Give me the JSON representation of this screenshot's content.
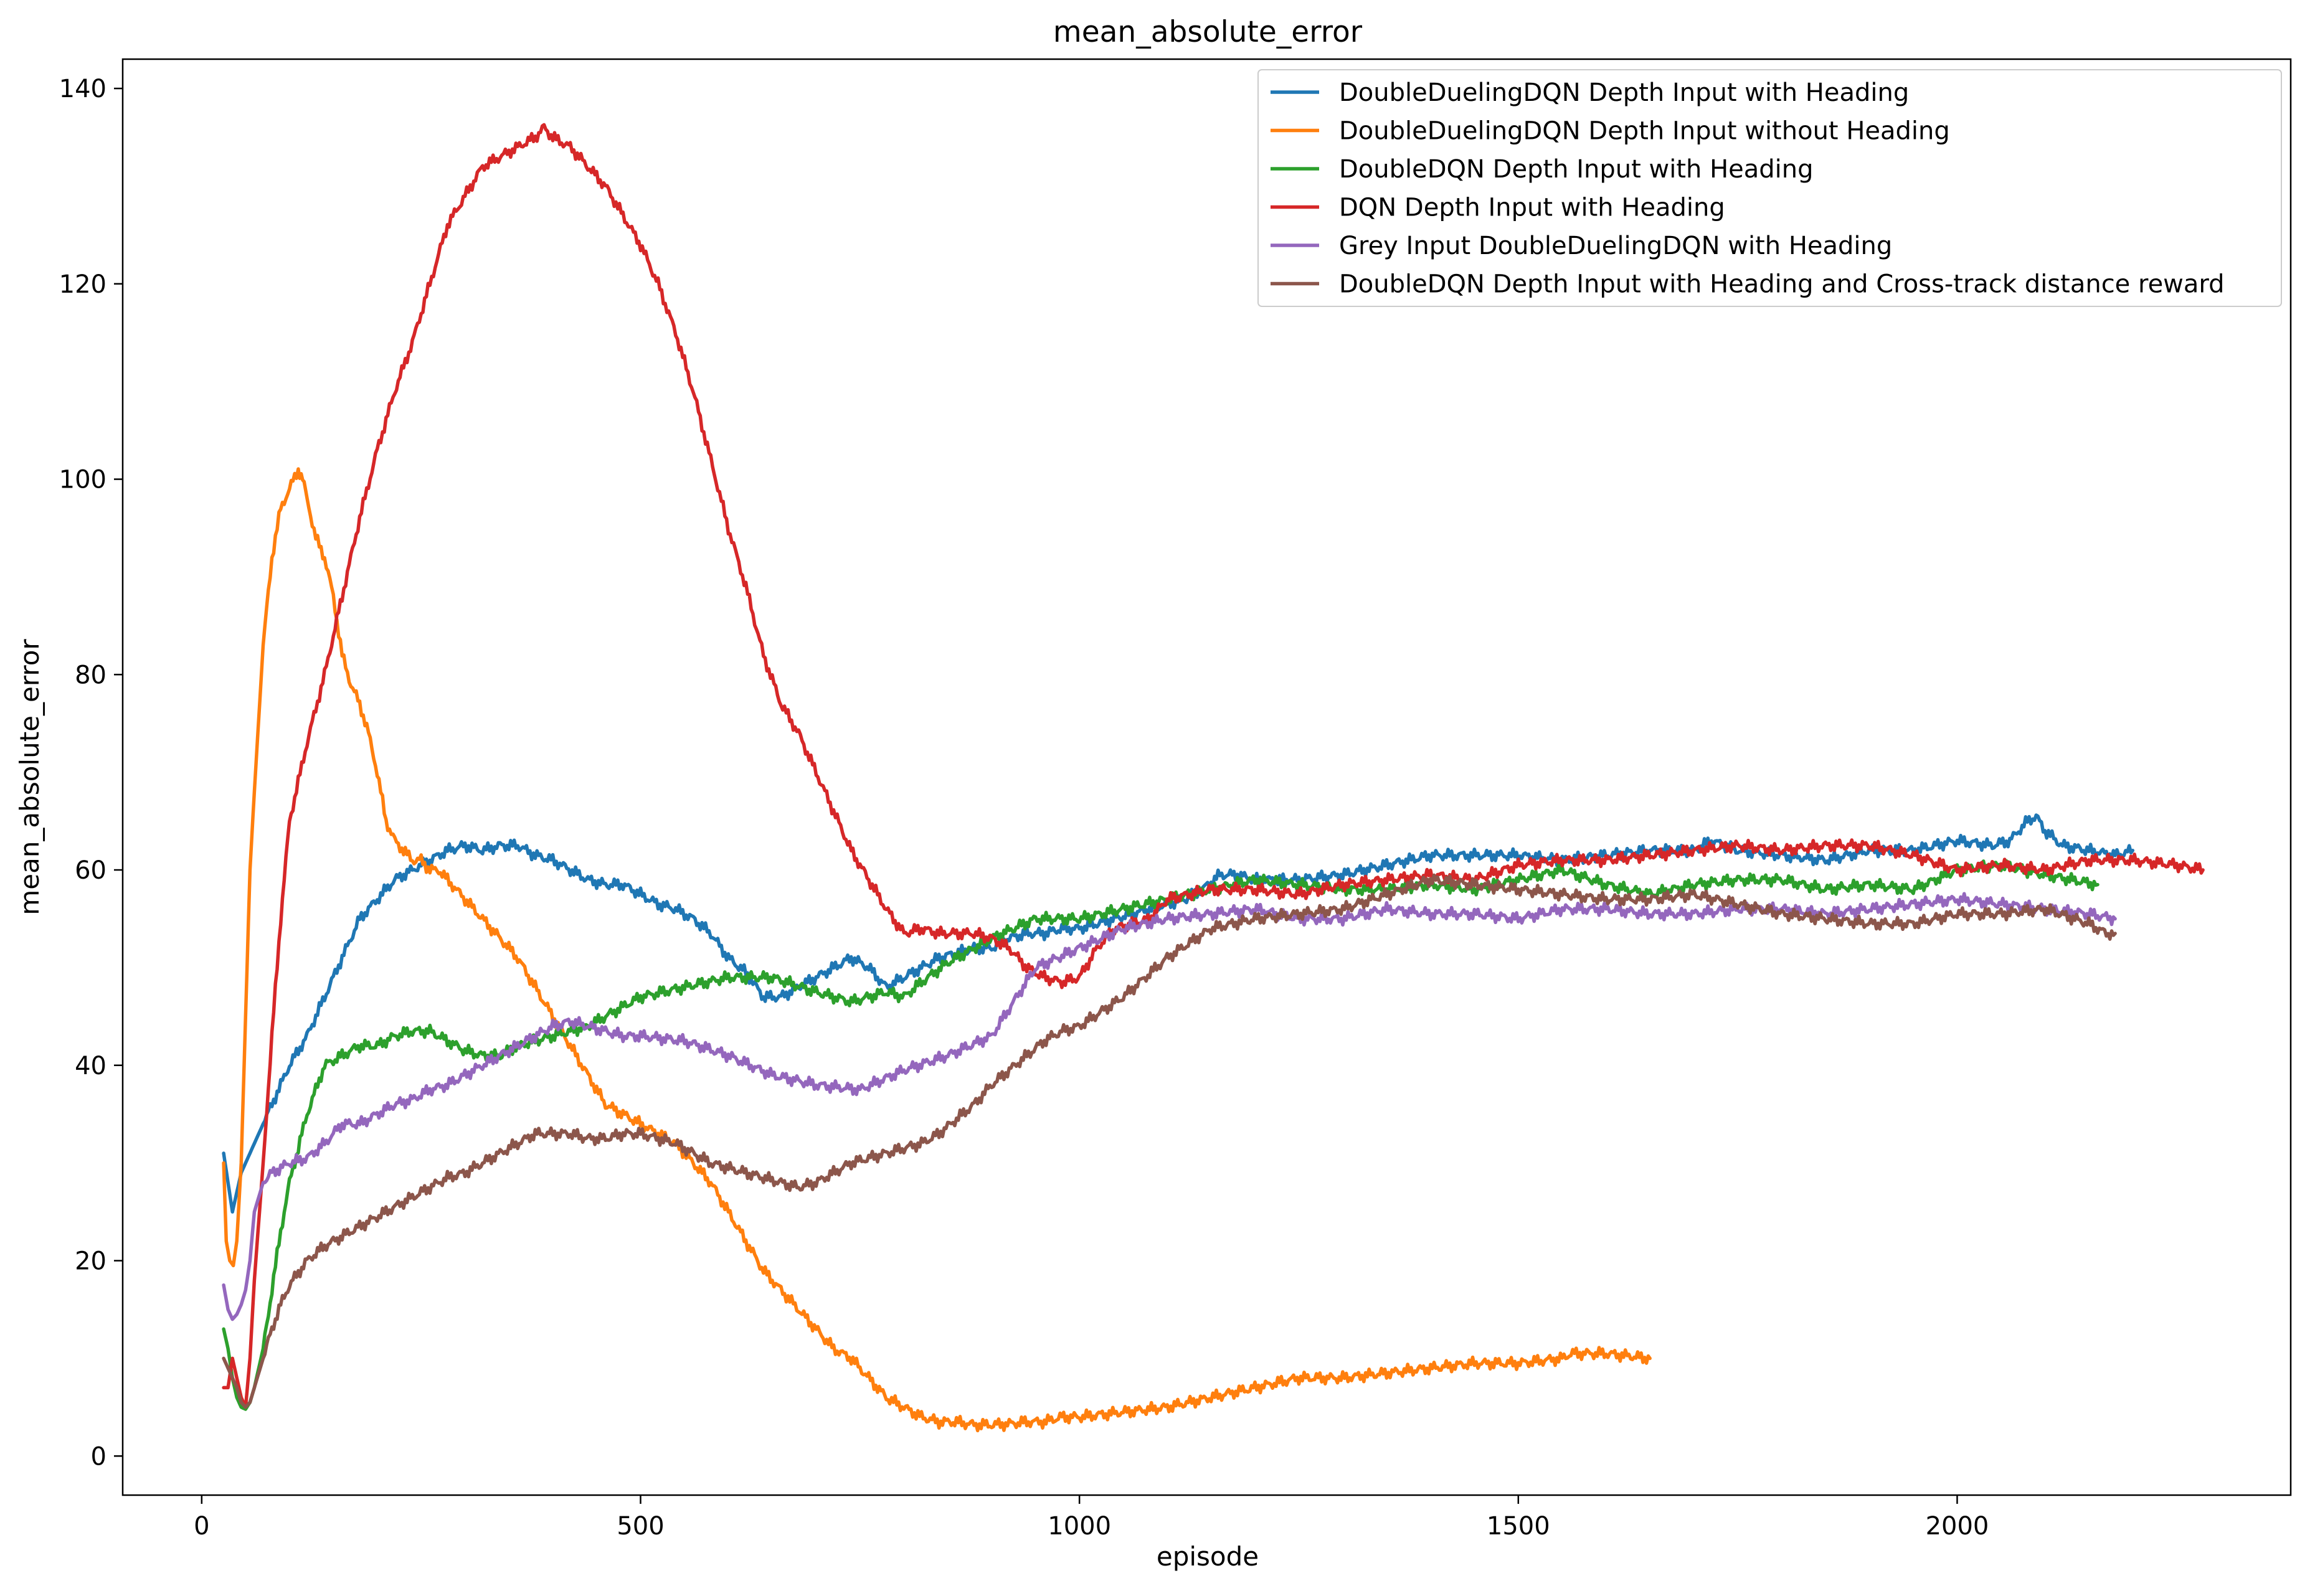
{
  "chart_data": {
    "type": "line",
    "title": "mean_absolute_error",
    "xlabel": "episode",
    "ylabel": "mean_absolute_error",
    "xlim": [
      -90,
      2380
    ],
    "ylim": [
      -4,
      143
    ],
    "xticks": [
      0,
      500,
      1000,
      1500,
      2000
    ],
    "yticks": [
      0,
      20,
      40,
      60,
      80,
      100,
      120,
      140
    ],
    "grid": false,
    "legend_position": "top-right",
    "series": [
      {
        "name": "DoubleDuelingDQN Depth Input with Heading",
        "color": "#1f77b4",
        "x": [
          25,
          30,
          35,
          40,
          45,
          50,
          55,
          60,
          70,
          80,
          90,
          100,
          120,
          140,
          160,
          180,
          200,
          220,
          240,
          260,
          280,
          300,
          320,
          340,
          360,
          380,
          400,
          420,
          440,
          460,
          480,
          500,
          520,
          540,
          560,
          580,
          600,
          620,
          640,
          660,
          680,
          700,
          720,
          740,
          760,
          780,
          800,
          820,
          840,
          860,
          880,
          900,
          920,
          940,
          960,
          980,
          1000,
          1020,
          1040,
          1060,
          1080,
          1100,
          1120,
          1140,
          1160,
          1180,
          1200,
          1250,
          1300,
          1350,
          1400,
          1450,
          1500,
          1550,
          1600,
          1650,
          1700,
          1720,
          1750,
          1800,
          1850,
          1900,
          1950,
          2000,
          2040,
          2060,
          2080,
          2090,
          2100,
          2120,
          2150,
          2180,
          2200
        ],
        "y": [
          31,
          28,
          25,
          27,
          29,
          30,
          31,
          32,
          34,
          36,
          38,
          40,
          43,
          47,
          51,
          55,
          57,
          59,
          60,
          61,
          62,
          62.5,
          62,
          62.5,
          62.5,
          61.5,
          61,
          60,
          59,
          58.5,
          58.5,
          57.5,
          56.5,
          56,
          55,
          53.5,
          51,
          49.5,
          47,
          47,
          48,
          49,
          50,
          51,
          50,
          48,
          49,
          50,
          51,
          51.5,
          52,
          52,
          53,
          53.5,
          53.5,
          54,
          54,
          54.5,
          55,
          55.5,
          56,
          56.5,
          57,
          58,
          59.5,
          59.5,
          59,
          59,
          59.5,
          60.5,
          61.5,
          61.5,
          61.5,
          61,
          61.5,
          62,
          62,
          63,
          62,
          61.5,
          61,
          62,
          62,
          63,
          62.5,
          63,
          65,
          65.5,
          64,
          62.5,
          62,
          61.5,
          62
        ]
      },
      {
        "name": "DoubleDuelingDQN Depth Input without Heading",
        "color": "#ff7f0e",
        "x": [
          25,
          28,
          32,
          36,
          40,
          45,
          50,
          55,
          60,
          70,
          80,
          90,
          100,
          110,
          115,
          120,
          130,
          140,
          150,
          160,
          170,
          180,
          190,
          200,
          210,
          220,
          230,
          240,
          250,
          260,
          270,
          280,
          290,
          300,
          320,
          340,
          360,
          380,
          400,
          420,
          440,
          460,
          480,
          500,
          520,
          540,
          560,
          580,
          600,
          620,
          640,
          660,
          680,
          700,
          720,
          740,
          760,
          780,
          800,
          820,
          840,
          860,
          880,
          900,
          920,
          940,
          960,
          980,
          1000,
          1050,
          1100,
          1150,
          1200,
          1250,
          1300,
          1350,
          1400,
          1450,
          1500,
          1550,
          1560,
          1570,
          1600,
          1650
        ],
        "y": [
          30,
          22,
          20,
          19.5,
          22,
          30,
          45,
          60,
          68,
          83,
          92,
          97,
          99,
          101,
          100,
          98,
          94,
          92,
          88,
          82,
          79,
          77,
          74,
          70,
          65,
          63,
          62,
          61,
          61,
          60,
          60,
          59,
          58,
          57,
          55,
          53,
          51,
          48,
          45,
          42,
          39,
          36,
          35,
          34,
          33,
          32,
          30,
          28,
          25,
          22,
          19,
          17,
          15,
          13,
          11,
          10,
          8,
          6,
          5,
          4,
          3.5,
          3.5,
          3.2,
          3.2,
          3.3,
          3.5,
          3.5,
          4,
          4,
          4.5,
          5,
          6,
          7,
          8,
          8,
          8.5,
          9,
          9.5,
          9.5,
          10,
          10.5,
          10.5,
          10.5,
          10
        ]
      },
      {
        "name": "DoubleDQN Depth Input with Heading",
        "color": "#2ca02c",
        "x": [
          25,
          30,
          35,
          40,
          45,
          50,
          55,
          60,
          70,
          80,
          90,
          100,
          120,
          140,
          160,
          180,
          200,
          220,
          240,
          260,
          280,
          300,
          320,
          340,
          360,
          380,
          400,
          420,
          440,
          460,
          480,
          500,
          550,
          600,
          650,
          700,
          740,
          760,
          780,
          800,
          820,
          850,
          900,
          950,
          1000,
          1050,
          1100,
          1150,
          1200,
          1250,
          1300,
          1350,
          1400,
          1450,
          1500,
          1550,
          1600,
          1650,
          1700,
          1750,
          1800,
          1850,
          1900,
          1950,
          2000,
          2050,
          2100,
          2130,
          2160
        ],
        "y": [
          13,
          11,
          8,
          6,
          5,
          4.8,
          5.5,
          7,
          11,
          17,
          23,
          28,
          35,
          40,
          41,
          42,
          42,
          43,
          43.5,
          43.5,
          42.5,
          41.5,
          41,
          41,
          42,
          42.5,
          43,
          43.5,
          44,
          45,
          46,
          47,
          48,
          49,
          49,
          47.5,
          46.5,
          47,
          47.5,
          47,
          48.5,
          50.5,
          53,
          55,
          55,
          56,
          57,
          58,
          59,
          58.5,
          58,
          58,
          58.5,
          58,
          59,
          60,
          58.5,
          57.5,
          58.5,
          59,
          59,
          58,
          58.5,
          58,
          60,
          60.5,
          59.5,
          59,
          58.5
        ]
      },
      {
        "name": "DQN Depth Input with Heading",
        "color": "#d62728",
        "x": [
          25,
          30,
          35,
          40,
          45,
          50,
          55,
          60,
          70,
          80,
          90,
          100,
          120,
          140,
          160,
          180,
          200,
          220,
          240,
          260,
          280,
          300,
          320,
          340,
          360,
          380,
          390,
          400,
          420,
          440,
          460,
          480,
          500,
          520,
          540,
          560,
          580,
          600,
          620,
          640,
          660,
          680,
          700,
          720,
          740,
          760,
          780,
          800,
          820,
          840,
          860,
          880,
          900,
          920,
          940,
          960,
          980,
          1000,
          1020,
          1040,
          1060,
          1080,
          1100,
          1150,
          1200,
          1250,
          1300,
          1350,
          1400,
          1450,
          1500,
          1550,
          1600,
          1650,
          1700,
          1750,
          1800,
          1850,
          1900,
          1950,
          2000,
          2050,
          2100,
          2150,
          2200,
          2250,
          2280
        ],
        "y": [
          7,
          7,
          10,
          8,
          6,
          5,
          10,
          18,
          30,
          43,
          55,
          65,
          73,
          80,
          88,
          96,
          103,
          109,
          114,
          120,
          126,
          129,
          132,
          133,
          134,
          135,
          136,
          135,
          134,
          132,
          130,
          127,
          124,
          120,
          115,
          109,
          102,
          95,
          89,
          82,
          77,
          74,
          70,
          66,
          62,
          59,
          56,
          53.5,
          54,
          53.5,
          53.5,
          53.5,
          53,
          52,
          50,
          49,
          48.5,
          49,
          52,
          54,
          54.5,
          55,
          57,
          58,
          58,
          57.5,
          58.5,
          59,
          59.5,
          59,
          60.5,
          61,
          61,
          61.5,
          62,
          62.5,
          62,
          62.5,
          62.5,
          61.5,
          60,
          60.5,
          60,
          61,
          61,
          60.5,
          60
        ]
      },
      {
        "name": "Grey Input DoubleDuelingDQN with Heading",
        "color": "#9467bd",
        "x": [
          25,
          30,
          35,
          40,
          45,
          50,
          55,
          60,
          70,
          80,
          90,
          100,
          120,
          140,
          160,
          180,
          200,
          220,
          240,
          260,
          280,
          300,
          320,
          340,
          360,
          380,
          400,
          420,
          440,
          460,
          480,
          500,
          550,
          600,
          650,
          700,
          750,
          800,
          850,
          900,
          950,
          1000,
          1050,
          1100,
          1150,
          1200,
          1250,
          1300,
          1350,
          1400,
          1450,
          1500,
          1550,
          1600,
          1650,
          1700,
          1750,
          1800,
          1850,
          1900,
          1950,
          2000,
          2050,
          2100,
          2150,
          2180
        ],
        "y": [
          17.5,
          15,
          14,
          14.5,
          15.5,
          17,
          20,
          25,
          28,
          29,
          29.5,
          30,
          30.5,
          32,
          34,
          34,
          35,
          36,
          36.5,
          37.5,
          38,
          39,
          40,
          41,
          42,
          43,
          44,
          44.5,
          44,
          43.5,
          43,
          43,
          42.5,
          41,
          39,
          38,
          37.5,
          39.5,
          41,
          43,
          50,
          52,
          54,
          55,
          55.5,
          56,
          55,
          55,
          56,
          55.5,
          55.5,
          55,
          56,
          56,
          55.5,
          55.5,
          56,
          56,
          55.5,
          56,
          56.5,
          57,
          56.5,
          56,
          55.5,
          55
        ]
      },
      {
        "name": "DoubleDQN Depth Input with Heading and Cross-track distance reward",
        "color": "#8c564b",
        "x": [
          25,
          30,
          35,
          40,
          45,
          50,
          55,
          60,
          70,
          80,
          90,
          100,
          120,
          140,
          160,
          180,
          200,
          220,
          240,
          260,
          280,
          300,
          320,
          340,
          360,
          380,
          400,
          420,
          440,
          460,
          480,
          500,
          520,
          540,
          560,
          580,
          600,
          620,
          640,
          660,
          680,
          700,
          720,
          740,
          760,
          780,
          800,
          820,
          840,
          860,
          880,
          900,
          920,
          940,
          960,
          980,
          1000,
          1050,
          1100,
          1150,
          1200,
          1250,
          1300,
          1350,
          1400,
          1450,
          1500,
          1550,
          1600,
          1650,
          1700,
          1750,
          1800,
          1850,
          1900,
          1950,
          2000,
          2050,
          2100,
          2150,
          2170,
          2180
        ],
        "y": [
          10,
          9,
          8,
          7,
          5.5,
          5,
          5.5,
          7,
          10,
          13,
          15.5,
          17.5,
          20,
          21.5,
          22.5,
          23.5,
          24.5,
          25.5,
          26.5,
          27.5,
          28.5,
          29,
          30,
          31,
          32,
          33,
          33,
          33,
          32.5,
          32.5,
          33,
          33,
          32.5,
          32,
          31,
          30,
          29.5,
          29,
          28.5,
          28,
          27.5,
          28,
          29,
          30,
          30.5,
          31,
          31.5,
          32,
          33,
          34.5,
          36,
          38,
          39.5,
          41,
          42.5,
          43.5,
          44,
          47,
          51,
          54,
          55,
          55.5,
          56,
          57.5,
          59,
          58.5,
          58,
          57.5,
          57,
          57,
          57.5,
          56.5,
          55.5,
          55,
          54.5,
          54.5,
          55.5,
          55.5,
          56,
          54.5,
          53.5,
          53.5
        ]
      }
    ]
  }
}
